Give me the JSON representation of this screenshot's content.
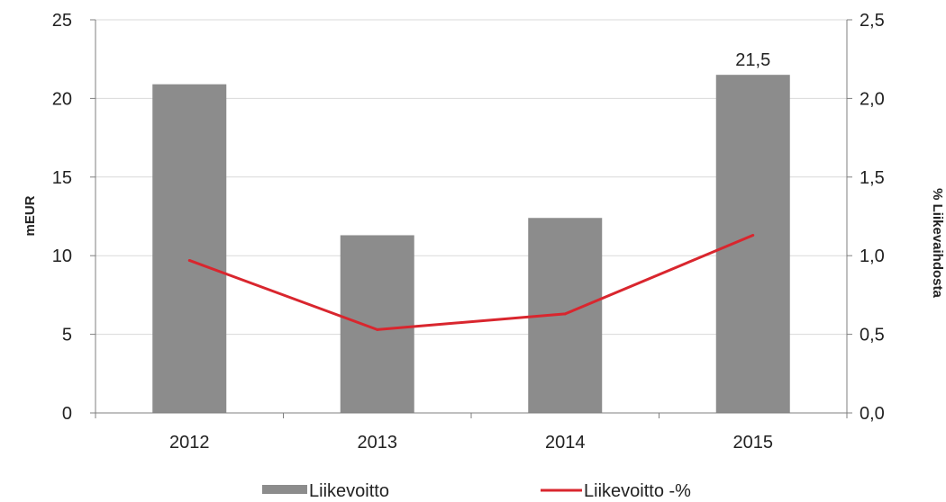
{
  "chart_data": {
    "type": "bar",
    "categories": [
      "2012",
      "2013",
      "2014",
      "2015"
    ],
    "series": [
      {
        "name": "Liikevoitto",
        "type": "bar",
        "axis": "left",
        "values": [
          20.9,
          11.3,
          12.4,
          21.5
        ],
        "color": "#8c8c8c"
      },
      {
        "name": "Liikevoitto -%",
        "type": "line",
        "axis": "right",
        "values": [
          0.97,
          0.53,
          0.63,
          1.13
        ],
        "color": "#d9262e"
      }
    ],
    "data_labels": [
      {
        "series": 0,
        "index": 3,
        "text": "21,5"
      }
    ],
    "ylabel": "mEUR",
    "ylabel_right": "% Liikevaihdosta",
    "ylim": [
      0,
      25
    ],
    "ylim_right": [
      0,
      2.5
    ],
    "y_ticks": [
      "0",
      "5",
      "10",
      "15",
      "20",
      "25"
    ],
    "y_ticks_right": [
      "0,0",
      "0,5",
      "1,0",
      "1,5",
      "2,0",
      "2,5"
    ],
    "grid": true,
    "legend_position": "bottom"
  }
}
